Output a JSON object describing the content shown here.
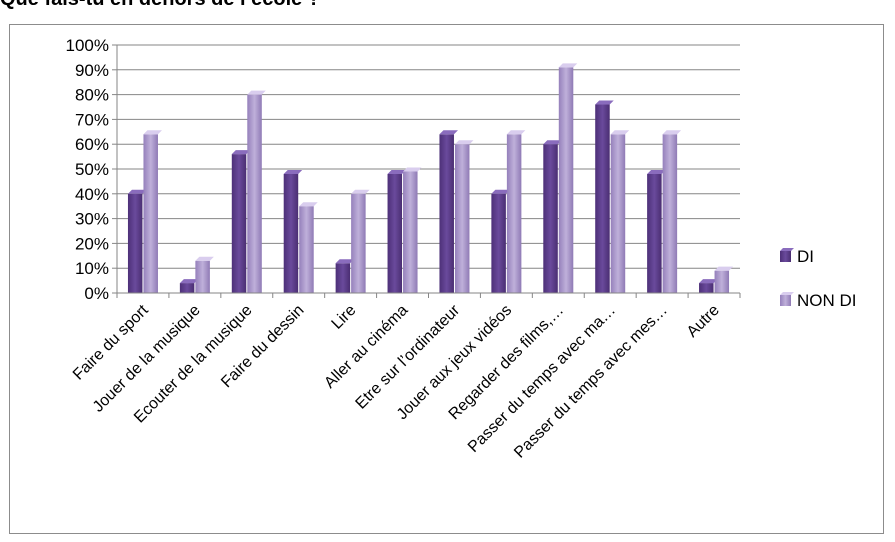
{
  "page": {
    "title": "Que fais-tu en dehors de l’école ?"
  },
  "chart_data": {
    "type": "bar",
    "title": "",
    "xlabel": "",
    "ylabel": "",
    "ylim": [
      0,
      1
    ],
    "yticks": [
      "0%",
      "10%",
      "20%",
      "30%",
      "40%",
      "50%",
      "60%",
      "70%",
      "80%",
      "90%",
      "100%"
    ],
    "grid": "horizontal",
    "legend": "right",
    "categories": [
      "Faire du sport",
      "Jouer de la musique",
      "Ecouter de la musique",
      "Faire du dessin",
      "Lire",
      "Aller au cinéma",
      "Etre sur l’ordinateur",
      "Jouer aux jeux vidéos",
      "Regarder des films,…",
      "Passer du temps avec ma…",
      "Passer du temps avec mes…",
      "Autre"
    ],
    "series": [
      {
        "name": "DI",
        "color": "#5f3f8f",
        "values": [
          0.4,
          0.04,
          0.56,
          0.48,
          0.12,
          0.48,
          0.64,
          0.4,
          0.6,
          0.76,
          0.48,
          0.04
        ]
      },
      {
        "name": "NON DI",
        "color": "#a48fc7",
        "values": [
          0.64,
          0.13,
          0.8,
          0.35,
          0.4,
          0.49,
          0.6,
          0.64,
          0.91,
          0.64,
          0.64,
          0.09
        ]
      }
    ]
  }
}
